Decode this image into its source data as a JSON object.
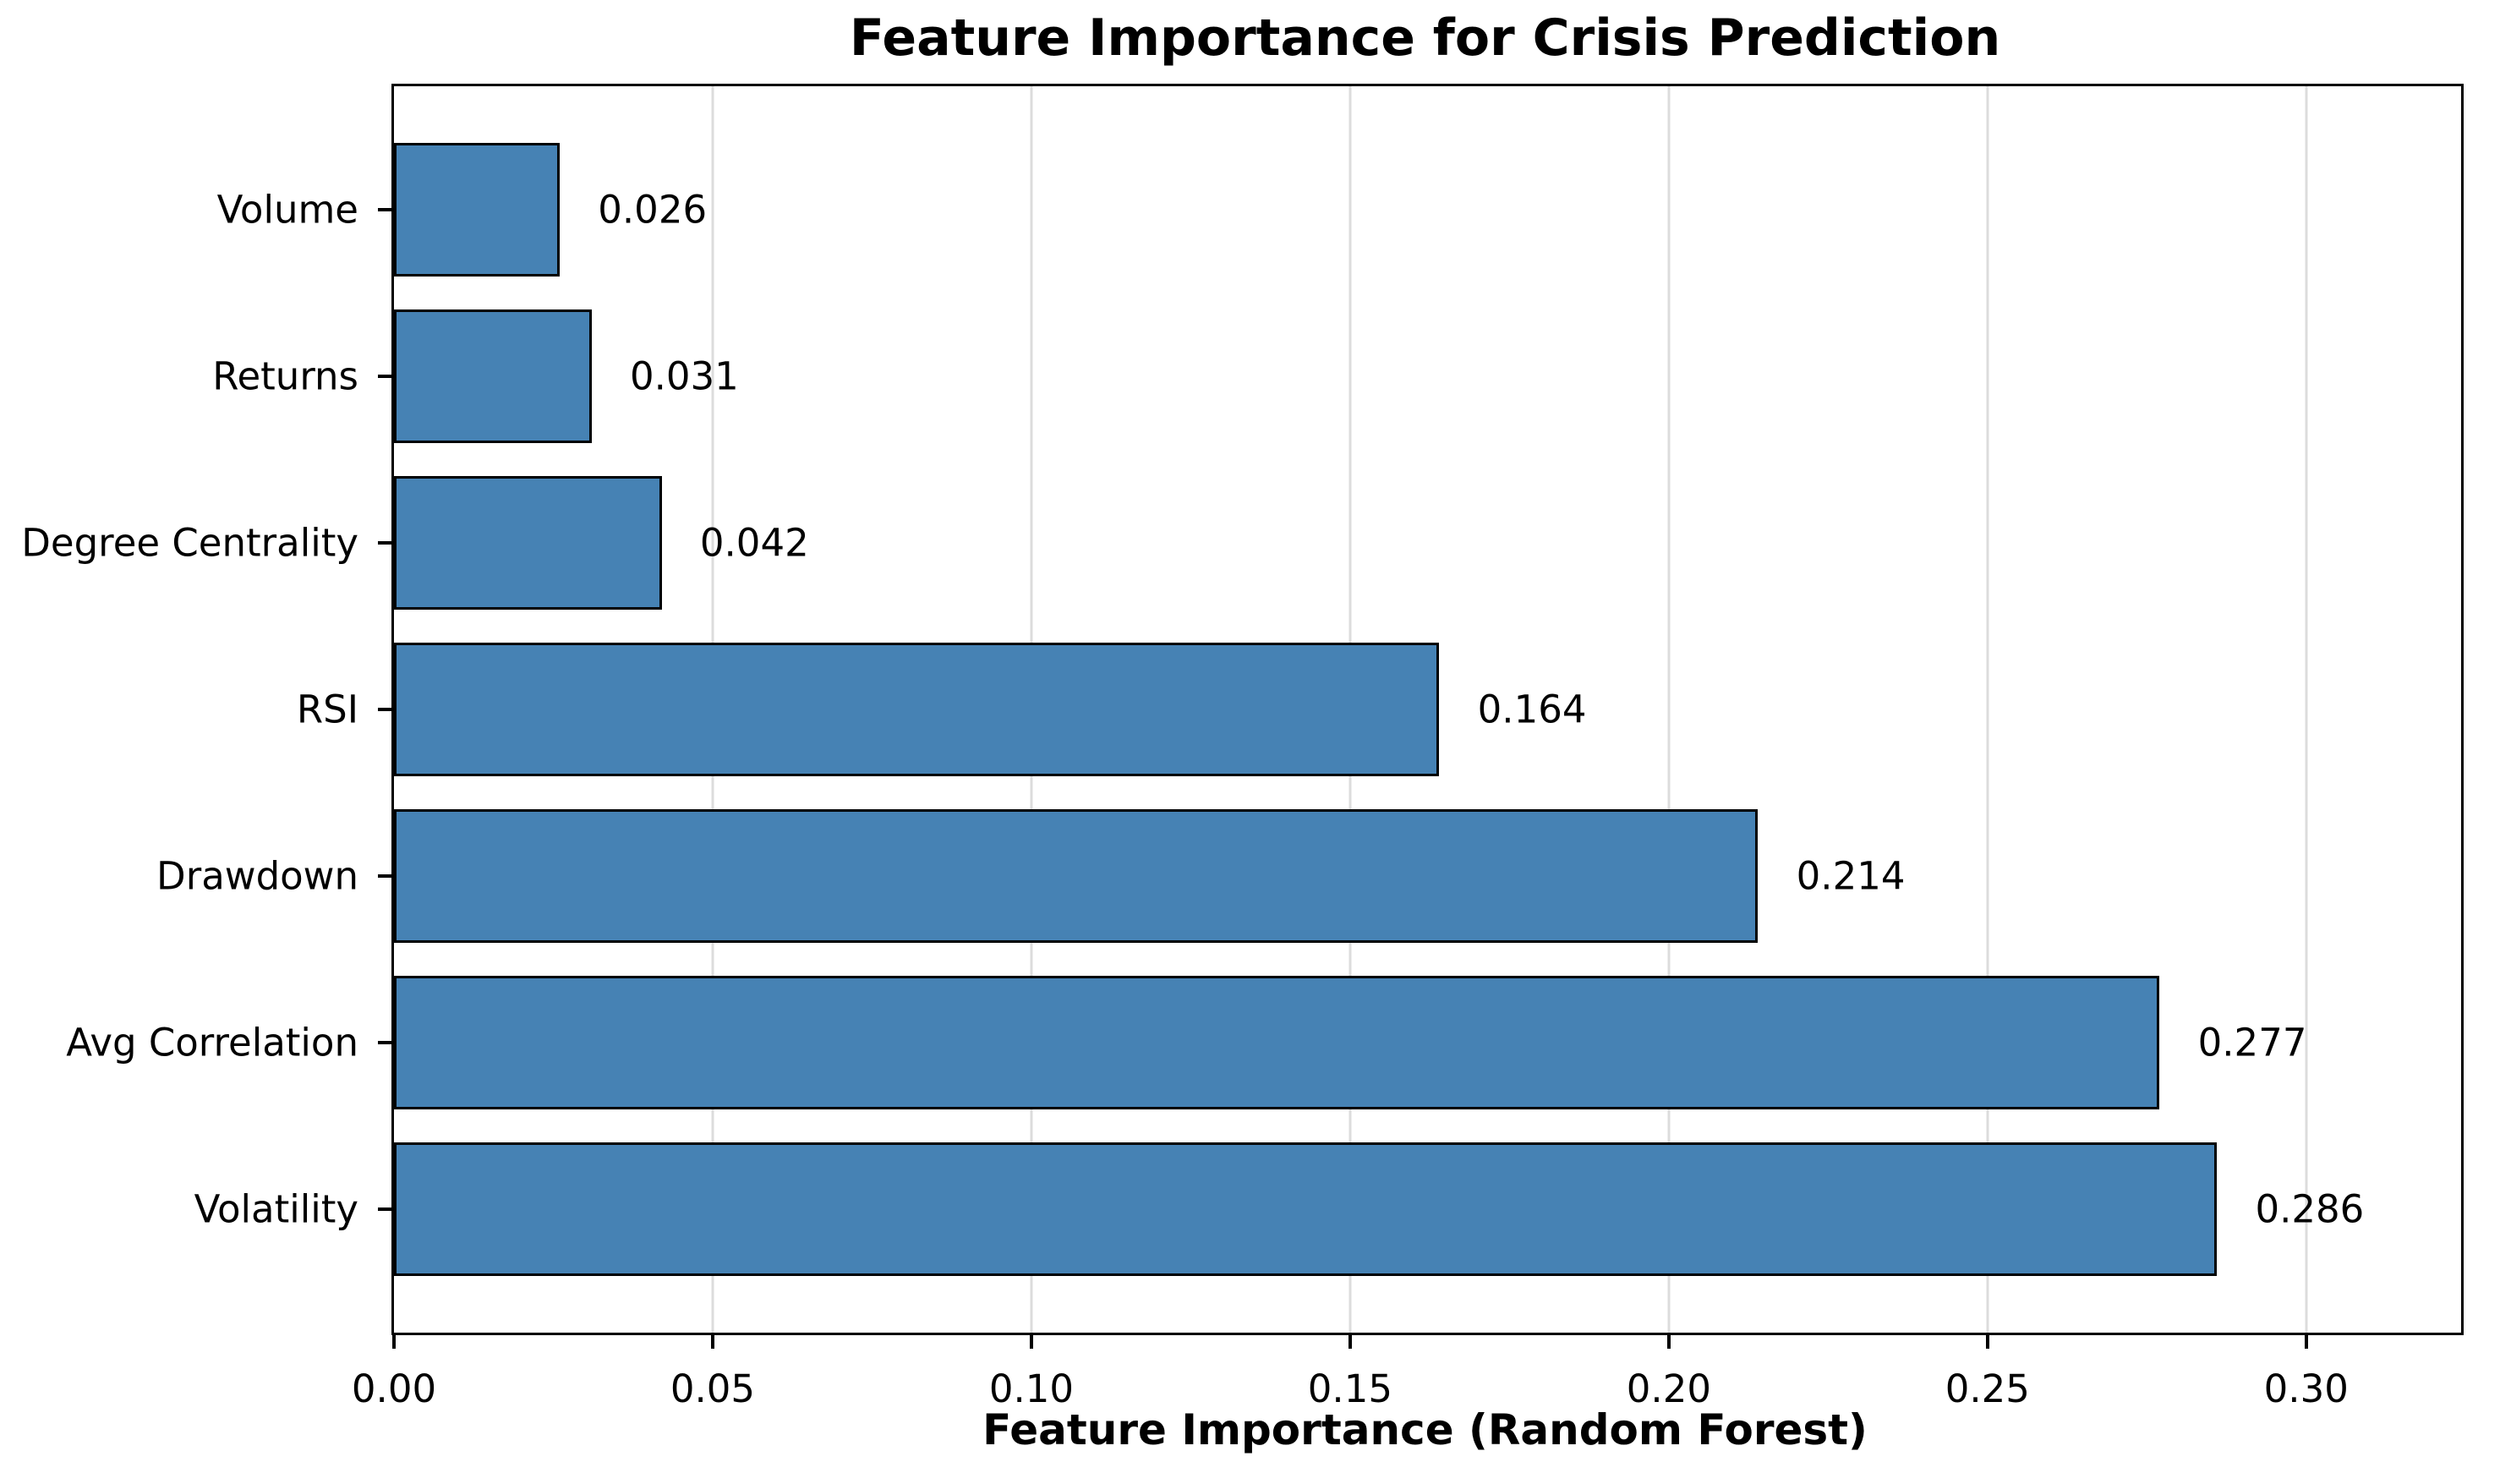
{
  "title": "Feature Importance for Crisis Prediction",
  "chart_data": {
    "type": "bar",
    "orientation": "horizontal",
    "title": "Feature Importance for Crisis Prediction",
    "xlabel": "Feature Importance (Random Forest)",
    "ylabel": "",
    "categories": [
      "Volume",
      "Returns",
      "Degree Centrality",
      "RSI",
      "Drawdown",
      "Avg Correlation",
      "Volatility"
    ],
    "values": [
      0.026,
      0.031,
      0.042,
      0.164,
      0.214,
      0.277,
      0.286
    ],
    "value_labels": [
      "0.026",
      "0.031",
      "0.042",
      "0.164",
      "0.214",
      "0.277",
      "0.286"
    ],
    "xlim": [
      0,
      0.3243
    ],
    "xticks": [
      0,
      0.05,
      0.1,
      0.15,
      0.2,
      0.25,
      0.3
    ],
    "xtick_labels": [
      "0.00",
      "0.05",
      "0.10",
      "0.15",
      "0.20",
      "0.25",
      "0.30"
    ],
    "grid": "vertical",
    "legend": "none",
    "colors": {
      "bar_fill": "#4682B4",
      "bar_edge": "#000000",
      "grid_line": "#dcdcdc",
      "text": "#000000",
      "background": "#ffffff"
    },
    "layout": {
      "bar_height_units": 0.8,
      "y_margin_units": 0.74,
      "value_label_offset_units": 0.006
    }
  }
}
